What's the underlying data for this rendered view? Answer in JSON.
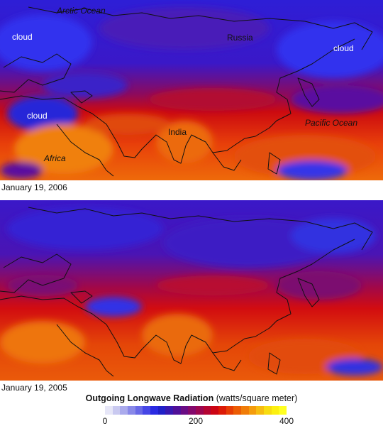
{
  "maps": [
    {
      "date": "January 19, 2006",
      "labels": {
        "arctic": "Arctic Ocean",
        "cloud_nw": "cloud",
        "russia": "Russia",
        "cloud_ne": "cloud",
        "cloud_w": "cloud",
        "india": "India",
        "pacific": "Pacific Ocean",
        "africa": "Africa"
      }
    },
    {
      "date": "January 19, 2005"
    }
  ],
  "legend": {
    "title": "Outgoing Longwave Radiation",
    "unit": "(watts/square meter)",
    "ticks": [
      "0",
      "200",
      "400"
    ],
    "range": [
      0,
      400
    ],
    "colors": [
      "#e6e6f7",
      "#c9c9f0",
      "#aaaaec",
      "#8888e8",
      "#6868e6",
      "#4646e6",
      "#2a2ae2",
      "#2020c8",
      "#3818b0",
      "#501098",
      "#6a0c84",
      "#84086c",
      "#9c0650",
      "#b40432",
      "#cc0414",
      "#dc1a06",
      "#e63c04",
      "#ec5c04",
      "#f07c08",
      "#f49c0c",
      "#f6bc10",
      "#f8dc10",
      "#fcf010",
      "#ffff20"
    ]
  }
}
